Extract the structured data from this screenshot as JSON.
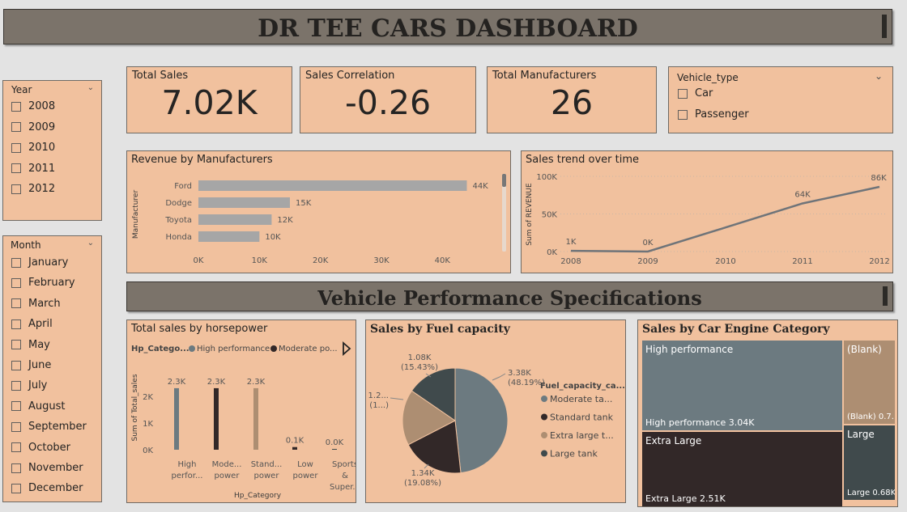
{
  "header": {
    "title": "DR TEE CARS DASHBOARD"
  },
  "section2": {
    "title": "Vehicle Performance Specifications"
  },
  "kpis": {
    "total_sales": {
      "label": "Total Sales",
      "value": "7.02K"
    },
    "sales_correlation": {
      "label": "Sales Correlation",
      "value": "-0.26"
    },
    "total_manufacturers": {
      "label": "Total Manufacturers",
      "value": "26"
    }
  },
  "vehicle_type": {
    "label": "Vehicle_type",
    "options": [
      "Car",
      "Passenger"
    ]
  },
  "year_slicer": {
    "label": "Year",
    "options": [
      "2008",
      "2009",
      "2010",
      "2011",
      "2012"
    ]
  },
  "month_slicer": {
    "label": "Month",
    "options": [
      "January",
      "February",
      "March",
      "April",
      "May",
      "June",
      "July",
      "August",
      "September",
      "October",
      "November",
      "December"
    ]
  },
  "colors": {
    "peach": "#f1c19e",
    "banner": "#7b736a",
    "bar_gray": "#a6a6a6",
    "slate": "#6c7a80",
    "dark": "#322828",
    "tan": "#ad8e72",
    "charcoal": "#404a4c"
  },
  "chart_data": [
    {
      "type": "bar",
      "orientation": "horizontal",
      "title": "Revenue by Manufacturers",
      "ylabel": "Manufacturer",
      "categories": [
        "Ford",
        "Dodge",
        "Toyota",
        "Honda"
      ],
      "values": [
        44,
        15,
        12,
        10
      ],
      "data_labels": [
        "44K",
        "15K",
        "12K",
        "10K"
      ],
      "xticks": [
        "0K",
        "10K",
        "20K",
        "30K",
        "40K"
      ],
      "xlim": [
        0,
        45
      ]
    },
    {
      "type": "line",
      "title": "Sales trend over time",
      "ylabel": "Sum of REVENUE",
      "x": [
        "2008",
        "2009",
        "2010",
        "2011",
        "2012"
      ],
      "values": [
        1,
        0,
        32,
        64,
        86
      ],
      "data_labels": [
        "1K",
        "0K",
        "",
        "64K",
        "86K"
      ],
      "yticks": [
        "0K",
        "50K",
        "100K"
      ],
      "ylim": [
        0,
        100
      ]
    },
    {
      "type": "bar",
      "title": "Total sales by horsepower",
      "xlabel": "Hp_Category",
      "ylabel": "Sum of Total_sales",
      "legend_title": "Hp_Catego...",
      "legend": [
        "High performance",
        "Moderate po..."
      ],
      "categories": [
        [
          "High",
          "perfor..."
        ],
        [
          "Mode...",
          "power"
        ],
        [
          "Stand...",
          "power"
        ],
        [
          "Low",
          "power"
        ],
        [
          "Sports",
          "&",
          "Super..."
        ]
      ],
      "values": [
        2.3,
        2.3,
        2.3,
        0.1,
        0.0
      ],
      "data_labels": [
        "2.3K",
        "2.3K",
        "2.3K",
        "0.1K",
        "0.0K"
      ],
      "yticks": [
        "0K",
        "1K",
        "2K"
      ],
      "ylim": [
        0,
        2.6
      ]
    },
    {
      "type": "pie",
      "title": "Sales by Fuel capacity",
      "legend_title": "Fuel_capacity_ca...",
      "legend": [
        "Moderate ta...",
        "Standard tank",
        "Extra large t...",
        "Large tank"
      ],
      "values": [
        3.38,
        1.34,
        1.2,
        1.08
      ],
      "labels": [
        [
          "3.38K",
          "(48.19%)"
        ],
        [
          "1.34K",
          "(19.08%)"
        ],
        [
          "1.2...",
          "(1...)"
        ],
        [
          "1.08K",
          "(15.43%)"
        ]
      ]
    },
    {
      "type": "treemap",
      "title": "Sales by Car Engine Category",
      "items": [
        {
          "name": "High performance",
          "value_label": "High performance 3.04K"
        },
        {
          "name": "Extra Large",
          "value_label": "Extra Large 2.51K"
        },
        {
          "name": "(Blank)",
          "value_label": "(Blank) 0.7..."
        },
        {
          "name": "Large",
          "value_label": "Large 0.68K"
        }
      ]
    }
  ]
}
